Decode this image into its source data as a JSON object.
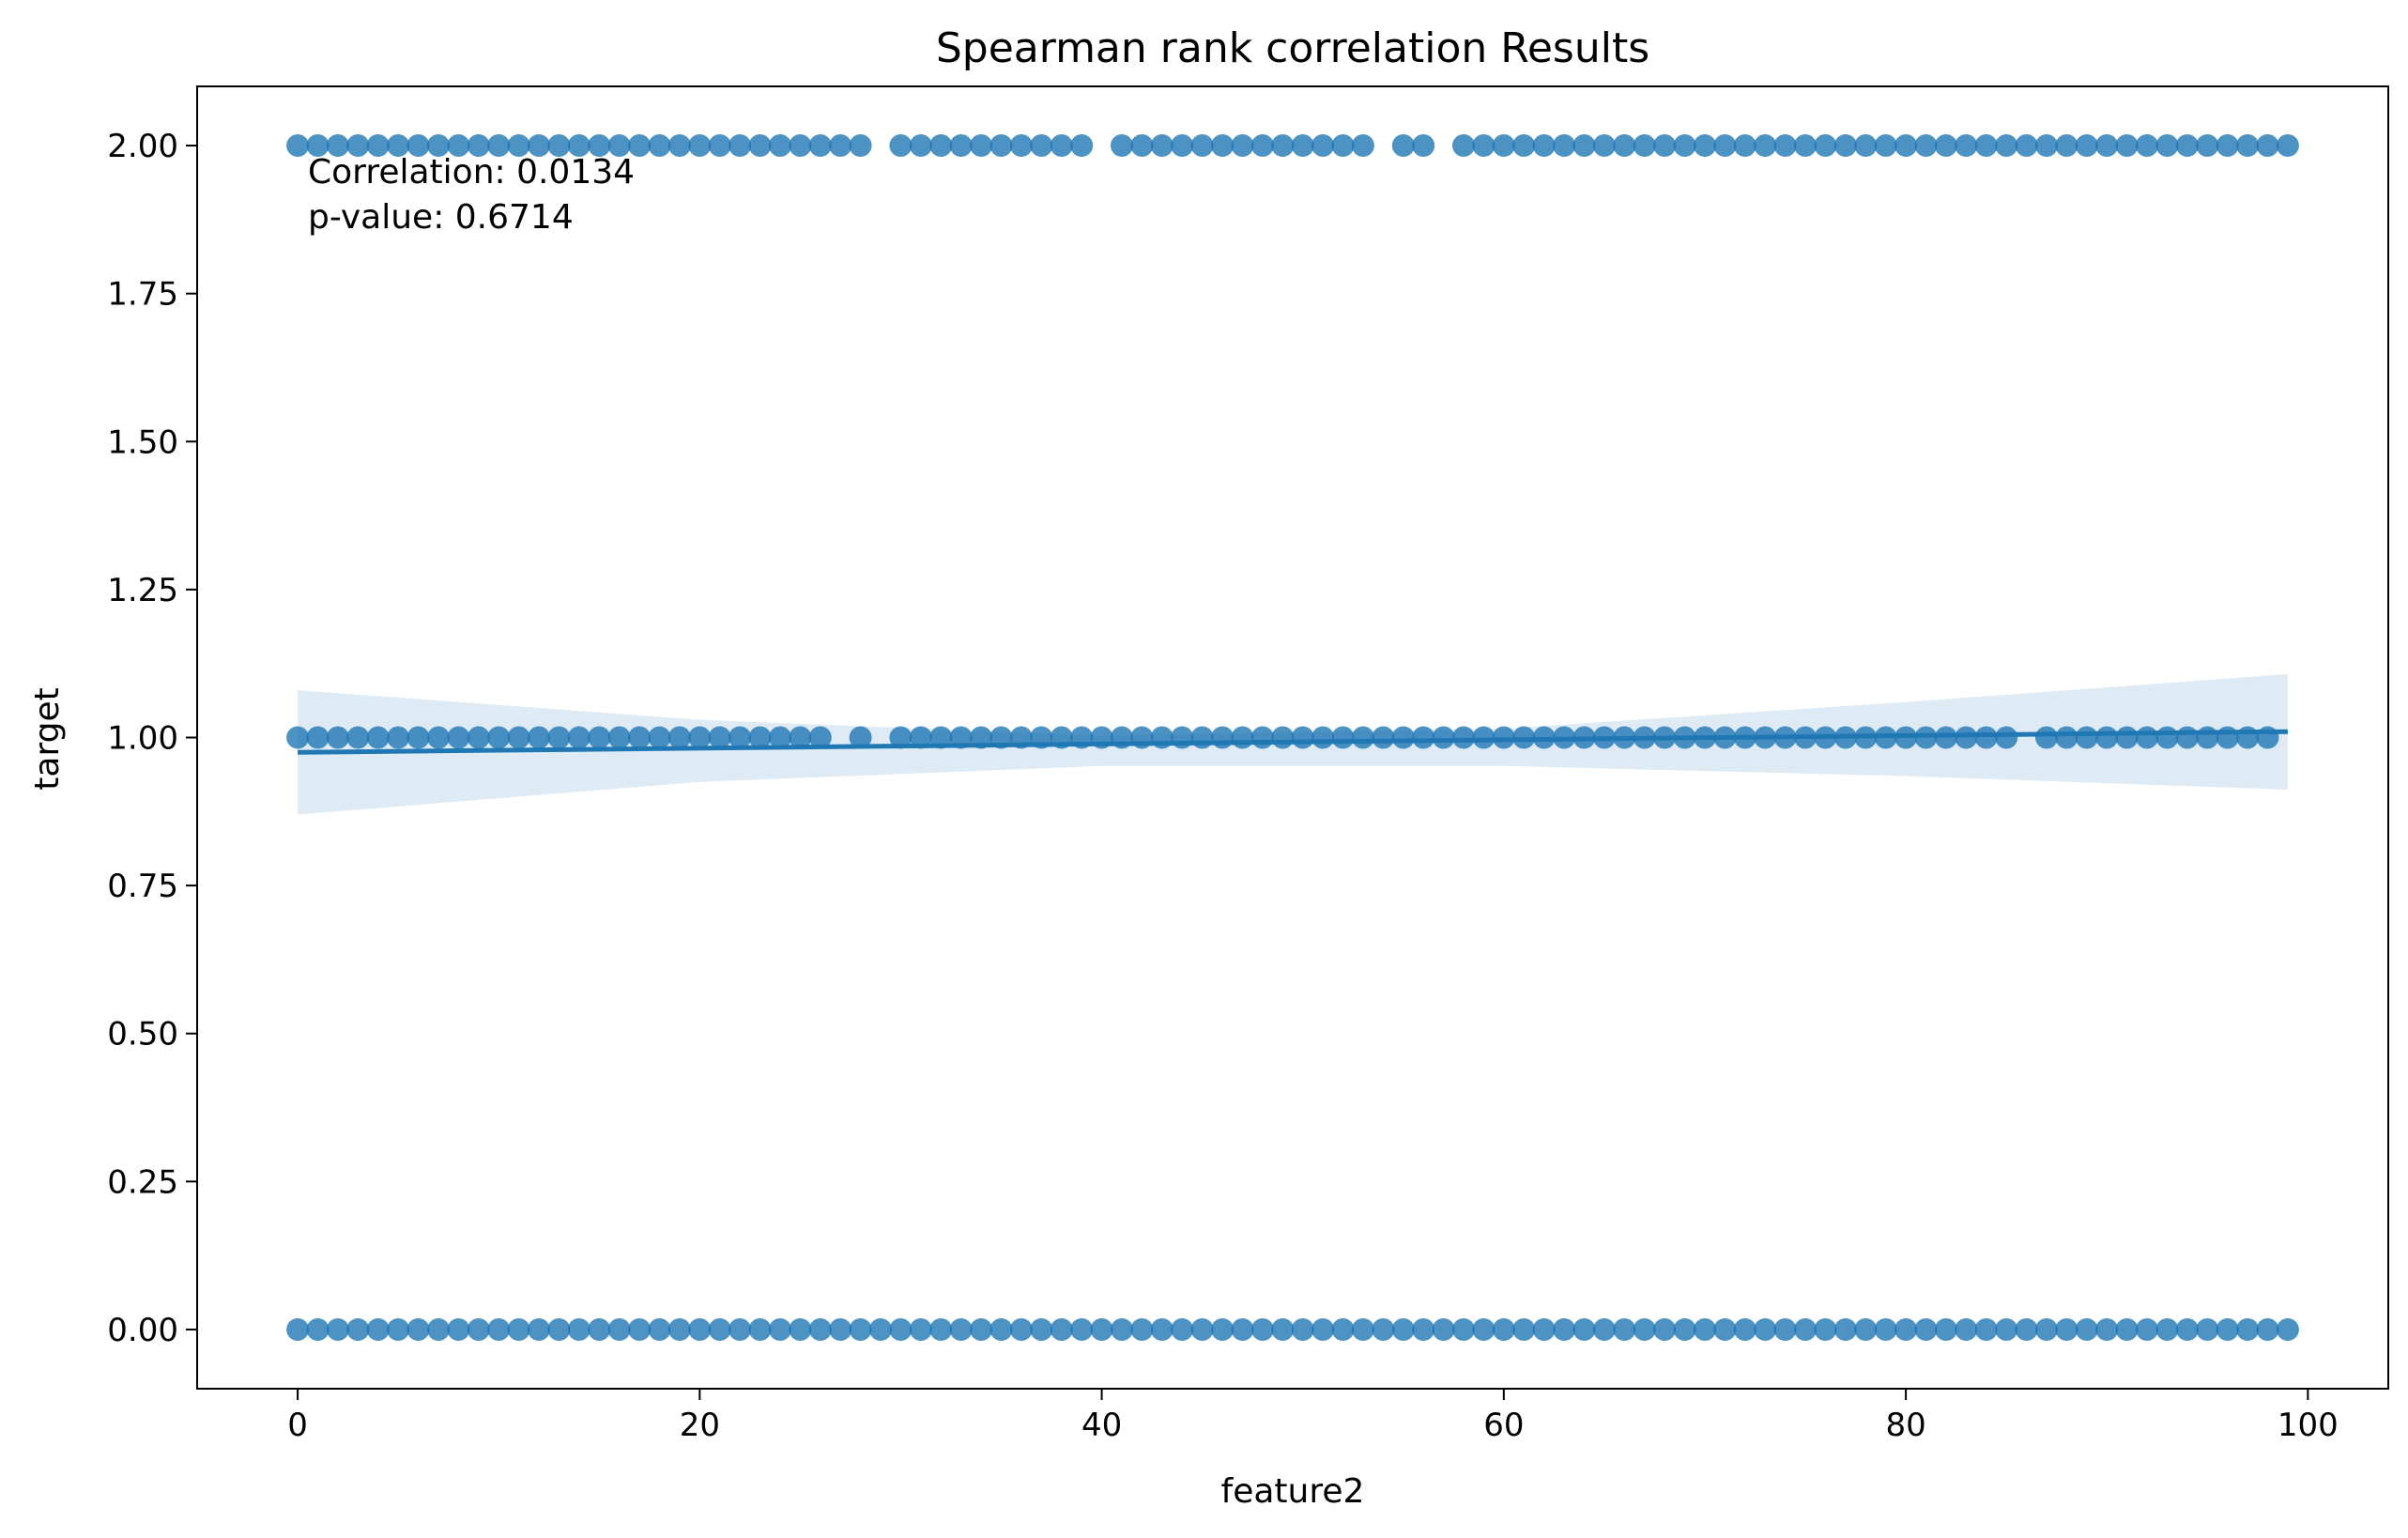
{
  "chart_data": {
    "type": "scatter",
    "title": "Spearman rank correlation Results",
    "xlabel": "feature2",
    "ylabel": "target",
    "xlim": [
      -5,
      104
    ],
    "ylim": [
      -0.1,
      2.1
    ],
    "xticks": [
      0,
      20,
      40,
      60,
      80,
      100
    ],
    "xtick_labels": [
      "0",
      "20",
      "40",
      "60",
      "80",
      "100"
    ],
    "yticks": [
      0,
      0.25,
      0.5,
      0.75,
      1.0,
      1.25,
      1.5,
      1.75,
      2.0
    ],
    "ytick_labels": [
      "0.00",
      "0.25",
      "0.50",
      "0.75",
      "1.00",
      "1.25",
      "1.50",
      "1.75",
      "2.00"
    ],
    "grid": false,
    "legend": "none",
    "annotations": [
      "Correlation: 0.0134",
      "p-value: 0.6714"
    ],
    "colors": {
      "points": "#1f77b4",
      "band": "#1f77b4"
    },
    "series": [
      {
        "y": 2,
        "x": [
          0,
          1,
          2,
          3,
          4,
          5,
          6,
          7,
          8,
          9,
          10,
          11,
          12,
          13,
          14,
          15,
          16,
          17,
          18,
          19,
          20,
          21,
          22,
          23,
          24,
          25,
          26,
          27,
          28,
          30,
          31,
          32,
          33,
          34,
          35,
          36,
          37,
          38,
          39,
          41,
          42,
          43,
          44,
          45,
          46,
          47,
          48,
          49,
          50,
          51,
          52,
          53,
          55,
          56,
          58,
          59,
          60,
          61,
          62,
          63,
          64,
          65,
          66,
          67,
          68,
          69,
          70,
          71,
          72,
          73,
          74,
          75,
          76,
          77,
          78,
          79,
          80,
          81,
          82,
          83,
          84,
          85,
          86,
          87,
          88,
          89,
          90,
          91,
          92,
          93,
          94,
          95,
          96,
          97,
          98,
          99
        ]
      },
      {
        "y": 1,
        "x": [
          0,
          1,
          2,
          3,
          4,
          5,
          6,
          7,
          8,
          9,
          10,
          11,
          12,
          13,
          14,
          15,
          16,
          17,
          18,
          19,
          20,
          21,
          22,
          23,
          24,
          25,
          26,
          28,
          30,
          31,
          32,
          33,
          34,
          35,
          36,
          37,
          38,
          39,
          40,
          41,
          42,
          43,
          44,
          45,
          46,
          47,
          48,
          49,
          50,
          51,
          52,
          53,
          54,
          55,
          56,
          57,
          58,
          59,
          60,
          61,
          62,
          63,
          64,
          65,
          66,
          67,
          68,
          69,
          70,
          71,
          72,
          73,
          74,
          75,
          76,
          77,
          78,
          79,
          80,
          81,
          82,
          83,
          84,
          85,
          87,
          88,
          89,
          90,
          91,
          92,
          93,
          94,
          95,
          96,
          97,
          98
        ]
      },
      {
        "y": 0,
        "x": [
          0,
          1,
          2,
          3,
          4,
          5,
          6,
          7,
          8,
          9,
          10,
          11,
          12,
          13,
          14,
          15,
          16,
          17,
          18,
          19,
          20,
          21,
          22,
          23,
          24,
          25,
          26,
          27,
          28,
          29,
          30,
          31,
          32,
          33,
          34,
          35,
          36,
          37,
          38,
          39,
          40,
          41,
          42,
          43,
          44,
          45,
          46,
          47,
          48,
          49,
          50,
          51,
          52,
          53,
          54,
          55,
          56,
          57,
          58,
          59,
          60,
          61,
          62,
          63,
          64,
          65,
          66,
          67,
          68,
          69,
          70,
          71,
          72,
          73,
          74,
          75,
          76,
          77,
          78,
          79,
          80,
          81,
          82,
          83,
          84,
          85,
          86,
          87,
          88,
          89,
          90,
          91,
          92,
          93,
          94,
          95,
          96,
          97,
          98,
          99
        ]
      }
    ],
    "regression": {
      "x": [
        0,
        99
      ],
      "y": [
        0.975,
        1.01
      ],
      "ci_x": [
        0,
        20,
        40,
        60,
        80,
        99
      ],
      "ci_lower": [
        0.87,
        0.925,
        0.952,
        0.952,
        0.935,
        0.912
      ],
      "ci_upper": [
        1.08,
        1.03,
        1.003,
        1.015,
        1.06,
        1.107
      ]
    }
  }
}
